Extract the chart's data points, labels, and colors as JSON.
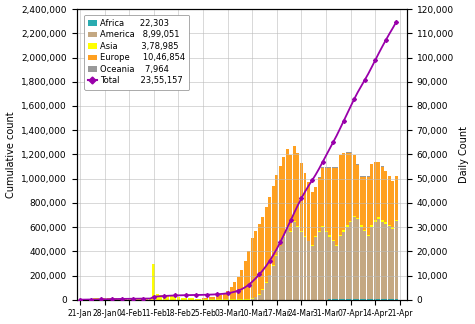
{
  "ylabel_left": "Cumulative count",
  "ylabel_right": "Daily Count",
  "ylim_left": [
    0,
    2400000
  ],
  "ylim_right": [
    0,
    120000
  ],
  "yticks_left": [
    0,
    200000,
    400000,
    600000,
    800000,
    1000000,
    1200000,
    1400000,
    1600000,
    1800000,
    2000000,
    2200000,
    2400000
  ],
  "yticks_right": [
    0,
    10000,
    20000,
    30000,
    40000,
    50000,
    60000,
    70000,
    80000,
    90000,
    100000,
    110000,
    120000
  ],
  "xtick_labels": [
    "21-Jan",
    "28-Jan",
    "04-Feb",
    "11-Feb",
    "18-Feb",
    "25-Feb",
    "03-Mar",
    "10-Mar",
    "17-Mar",
    "24-Mar",
    "31-Mar",
    "07-Apr",
    "14-Apr",
    "21-Apr"
  ],
  "xtick_positions": [
    0,
    7,
    14,
    21,
    28,
    35,
    42,
    49,
    56,
    63,
    70,
    77,
    84,
    91
  ],
  "colors": {
    "Africa": "#29ABB0",
    "America": "#C4A882",
    "Asia": "#FFFF00",
    "Europe": "#FFA020",
    "Oceania": "#999999",
    "Total_line": "#9900AA"
  },
  "legend_values": [
    "22,303",
    "8,99,051",
    "3,78,985",
    "10,46,854",
    "7,964",
    "23,55,157"
  ],
  "background_color": "#FFFFFF",
  "grid_color": "#BBBBBB"
}
